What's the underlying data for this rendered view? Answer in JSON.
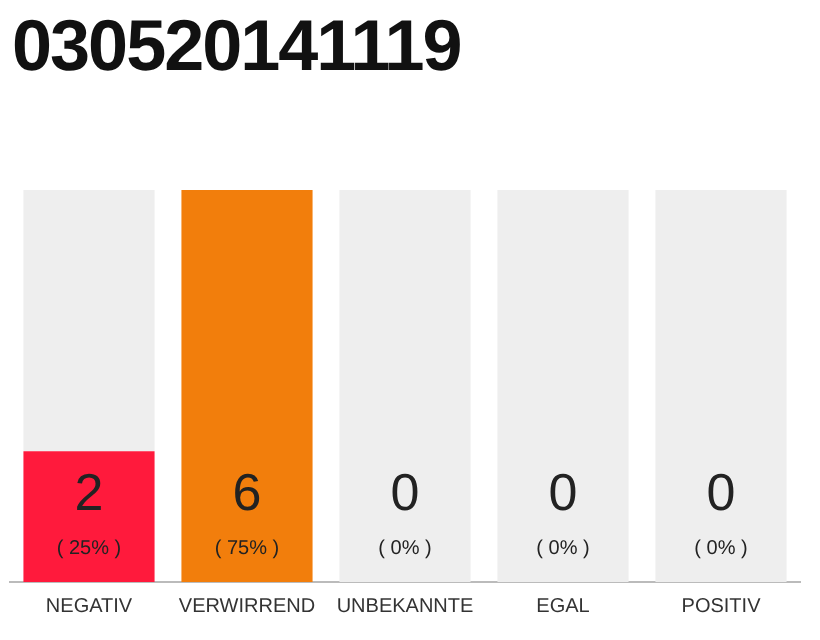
{
  "chart_data": {
    "type": "bar",
    "title": "030520141119",
    "categories": [
      "NEGATIV",
      "VERWIRREND",
      "UNBEKANNTE",
      "EGAL",
      "POSITIV"
    ],
    "stacked": true,
    "series": [
      {
        "values": [
          2,
          6,
          0,
          0,
          0
        ],
        "colors": [
          "#ff1a3c",
          "#f27e0c",
          "#f27e0c",
          "#f27e0c",
          "#f27e0c"
        ],
        "value_labels": [
          "2",
          "6",
          null,
          null,
          null
        ]
      },
      {
        "values": [
          4,
          0,
          6,
          6,
          6
        ],
        "color": "#eeeeee"
      }
    ],
    "ylim": [
      0,
      6
    ],
    "grid": false,
    "legend": false,
    "annotations": [
      "( 25% )",
      "( 75% )",
      "0",
      "( 0% )",
      "0",
      "( 0% )",
      "0",
      "( 0% )"
    ]
  }
}
